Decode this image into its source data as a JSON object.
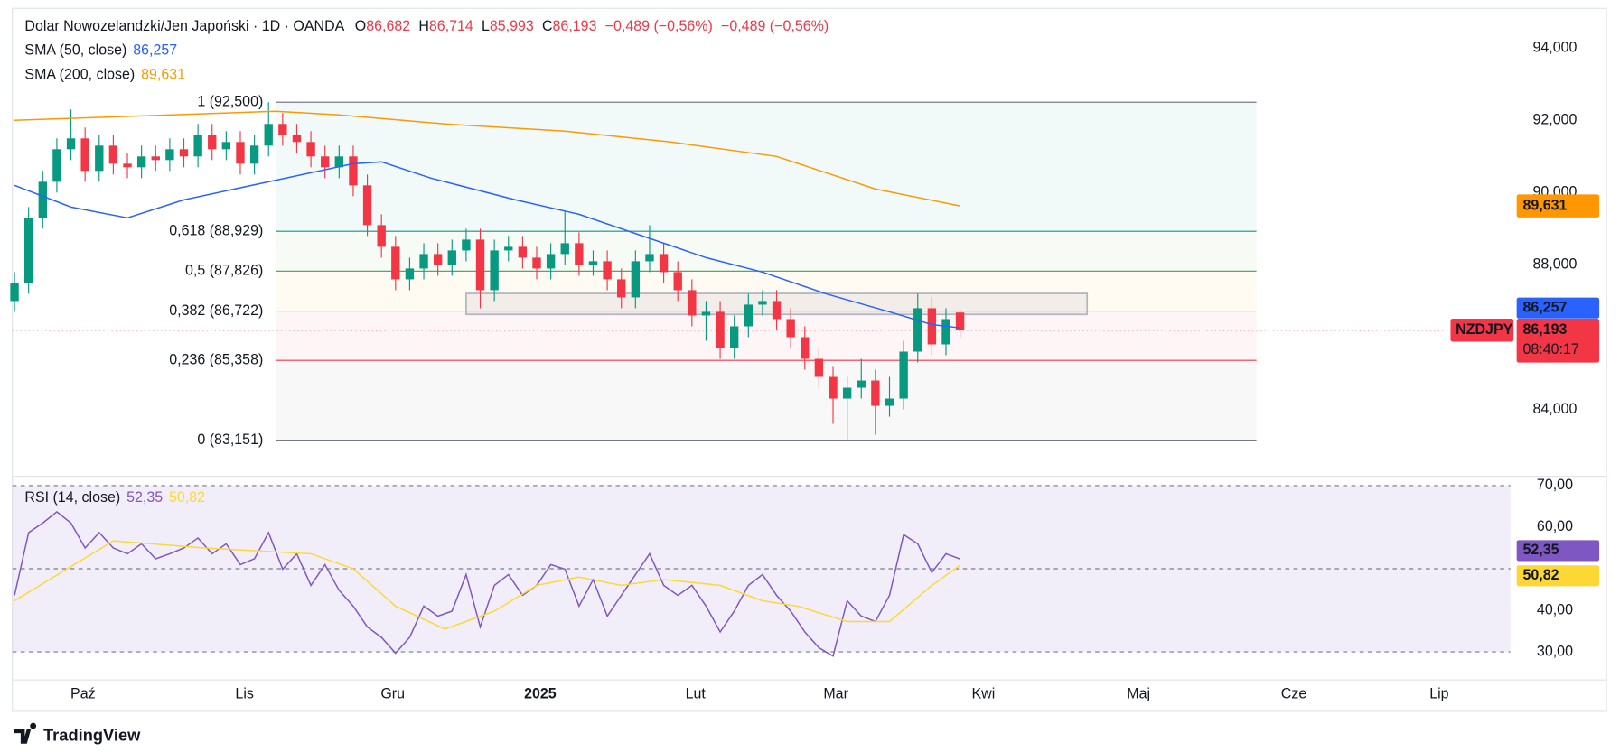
{
  "header": {
    "title": "Dolar Nowozelandzki/Jen Japoński · 1D · OANDA",
    "fields": [
      {
        "label": "O",
        "value": "86,682"
      },
      {
        "label": "H",
        "value": "86,714"
      },
      {
        "label": "L",
        "value": "85,993"
      },
      {
        "label": "C",
        "value": "86,193"
      }
    ],
    "change": [
      "−0,489 (−0,56%)",
      "−0,489 (−0,56%)"
    ],
    "value_color": "#f23645"
  },
  "footer": {
    "brand": "TradingView"
  },
  "chart_data": [
    {
      "type": "candlestick",
      "up_color": "#089981",
      "down_color": "#f23645",
      "x": [
        0,
        2,
        4,
        6,
        8,
        10,
        12,
        14,
        16,
        18,
        20,
        22,
        24,
        26,
        28,
        30,
        32,
        34,
        36,
        38,
        40,
        42,
        44,
        46,
        48,
        50,
        52,
        54,
        56,
        58,
        60,
        62,
        64,
        66,
        68,
        70,
        72,
        74,
        76,
        78,
        80,
        82,
        84,
        86,
        88,
        90,
        92,
        94,
        96,
        98,
        100,
        102,
        104,
        106,
        108,
        110,
        112,
        114,
        116,
        118,
        120,
        122,
        124,
        126,
        128,
        130,
        132,
        134
      ],
      "open": [
        87.0,
        87.5,
        89.3,
        90.3,
        91.2,
        91.5,
        90.6,
        91.3,
        90.8,
        90.7,
        91.0,
        90.9,
        91.2,
        91.0,
        91.6,
        91.2,
        91.4,
        90.8,
        91.3,
        91.9,
        91.6,
        91.4,
        91.0,
        90.7,
        91.0,
        90.2,
        89.1,
        88.5,
        87.6,
        87.9,
        88.3,
        88.0,
        88.4,
        88.7,
        87.3,
        88.4,
        88.5,
        88.2,
        87.9,
        88.3,
        88.6,
        88.0,
        88.1,
        87.6,
        87.1,
        88.1,
        88.3,
        87.8,
        87.3,
        86.6,
        86.7,
        85.7,
        86.3,
        86.9,
        87.0,
        86.5,
        86.0,
        85.4,
        84.9,
        84.3,
        84.6,
        84.8,
        84.1,
        84.3,
        85.6,
        86.8,
        85.8,
        86.682
      ],
      "high": [
        87.8,
        89.6,
        90.6,
        91.5,
        92.3,
        91.8,
        91.6,
        91.6,
        91.1,
        91.3,
        91.3,
        91.5,
        91.5,
        91.9,
        91.9,
        91.7,
        91.7,
        91.6,
        92.5,
        92.2,
        91.9,
        91.7,
        91.3,
        91.3,
        91.3,
        90.5,
        89.4,
        88.8,
        88.2,
        88.6,
        88.6,
        88.7,
        89.0,
        89.0,
        88.7,
        88.8,
        88.8,
        88.5,
        88.6,
        89.5,
        88.9,
        88.4,
        88.4,
        87.9,
        88.4,
        89.1,
        88.6,
        88.1,
        87.6,
        87.0,
        87.0,
        86.6,
        87.2,
        87.3,
        87.3,
        86.8,
        86.3,
        85.7,
        85.2,
        84.9,
        85.4,
        85.1,
        84.9,
        85.9,
        87.2,
        87.1,
        86.8,
        86.714
      ],
      "low": [
        86.7,
        87.2,
        89.0,
        90.0,
        90.9,
        90.3,
        90.3,
        90.5,
        90.4,
        90.4,
        90.6,
        90.6,
        90.7,
        90.7,
        90.9,
        90.9,
        90.5,
        90.5,
        91.0,
        91.3,
        91.1,
        90.7,
        90.4,
        90.4,
        89.9,
        88.8,
        88.2,
        87.3,
        87.3,
        87.6,
        87.7,
        87.7,
        88.1,
        86.8,
        87.0,
        88.1,
        87.9,
        87.6,
        87.6,
        88.0,
        87.7,
        87.7,
        87.3,
        86.8,
        86.8,
        87.8,
        87.5,
        87.0,
        86.3,
        85.9,
        85.4,
        85.4,
        86.0,
        86.6,
        86.2,
        85.7,
        85.1,
        84.6,
        83.6,
        83.151,
        84.3,
        83.3,
        83.8,
        84.0,
        85.3,
        85.5,
        85.5,
        85.993
      ],
      "close": [
        87.5,
        89.3,
        90.3,
        91.2,
        91.5,
        90.6,
        91.3,
        90.8,
        90.7,
        91.0,
        90.9,
        91.2,
        91.0,
        91.6,
        91.2,
        91.4,
        90.8,
        91.3,
        91.9,
        91.6,
        91.4,
        91.0,
        90.7,
        91.0,
        90.2,
        89.1,
        88.5,
        87.6,
        87.9,
        88.3,
        88.0,
        88.4,
        88.7,
        87.3,
        88.4,
        88.5,
        88.2,
        87.9,
        88.3,
        88.6,
        88.0,
        88.1,
        87.6,
        87.1,
        88.1,
        88.3,
        87.8,
        87.3,
        86.6,
        86.7,
        85.7,
        86.3,
        86.9,
        87.0,
        86.5,
        86.0,
        85.4,
        84.9,
        84.3,
        84.6,
        84.8,
        84.1,
        84.3,
        85.6,
        86.8,
        85.8,
        86.5,
        86.193
      ],
      "last_price_label": "86,193",
      "symbol": "NZDJPY",
      "countdown": "08:40:17",
      "lines": [
        {
          "name": "SMA (50, close)",
          "color": "#2962ff",
          "last_label": "86,257",
          "x": [
            0,
            8,
            16,
            24,
            36,
            48,
            52,
            59,
            71,
            80,
            89,
            98,
            106,
            115,
            124,
            130,
            134
          ],
          "values": [
            90.2,
            89.6,
            89.3,
            89.8,
            90.3,
            90.8,
            90.85,
            90.4,
            89.8,
            89.4,
            88.8,
            88.2,
            87.8,
            87.2,
            86.7,
            86.35,
            86.257
          ]
        },
        {
          "name": "SMA (200, close)",
          "color": "#ff9800",
          "last_label": "89,631",
          "x": [
            0,
            37,
            46,
            61,
            78,
            93,
            108,
            122,
            134
          ],
          "values": [
            92.0,
            92.25,
            92.15,
            91.9,
            91.7,
            91.4,
            91.0,
            90.1,
            89.631
          ]
        }
      ],
      "fib": {
        "x": [
          37,
          176
        ],
        "levels": [
          {
            "label": "1 (92,500)",
            "value": 92.5,
            "color": "#787b86"
          },
          {
            "label": "0,618 (88,929)",
            "value": 88.929,
            "color": "#089981"
          },
          {
            "label": "0,5 (87,826)",
            "value": 87.826,
            "color": "#4caf50"
          },
          {
            "label": "0,382 (86,722)",
            "value": 86.722,
            "color": "#ff9800"
          },
          {
            "label": "0,236 (85,358)",
            "value": 85.358,
            "color": "#f23645"
          },
          {
            "label": "0 (83,151)",
            "value": 83.151,
            "color": "#787b86"
          }
        ]
      },
      "rectangle": {
        "x": [
          64,
          152
        ],
        "y": [
          86.63,
          87.21
        ]
      },
      "xlim": [
        -0.3,
        212
      ],
      "ylim": [
        82.18,
        95.04
      ],
      "yticks": [
        {
          "value": 94,
          "label": "94,000"
        },
        {
          "value": 92,
          "label": "92,000"
        },
        {
          "value": 90,
          "label": "90,000"
        },
        {
          "value": 88,
          "label": "88,000"
        },
        {
          "value": 84,
          "label": "84,000"
        }
      ],
      "xticks": [
        {
          "value": 9.7,
          "label": "Paź"
        },
        {
          "value": 32.6,
          "label": "Lis"
        },
        {
          "value": 53.6,
          "label": "Gru"
        },
        {
          "value": 74.5,
          "label": "2025",
          "bold": true
        },
        {
          "value": 96.5,
          "label": "Lut"
        },
        {
          "value": 116.4,
          "label": "Mar"
        },
        {
          "value": 137.3,
          "label": "Kwi"
        },
        {
          "value": 159.3,
          "label": "Maj"
        },
        {
          "value": 181.3,
          "label": "Cze"
        },
        {
          "value": 201.9,
          "label": "Lip"
        }
      ]
    },
    {
      "type": "line",
      "title": "RSI (14, close)",
      "x": [
        0,
        2,
        4,
        6,
        8,
        10,
        12,
        14,
        16,
        18,
        20,
        22,
        24,
        26,
        28,
        30,
        32,
        34,
        36,
        38,
        40,
        42,
        44,
        46,
        48,
        50,
        52,
        54,
        56,
        58,
        60,
        62,
        64,
        66,
        68,
        70,
        72,
        74,
        76,
        78,
        80,
        82,
        84,
        86,
        88,
        90,
        92,
        94,
        96,
        98,
        100,
        102,
        104,
        106,
        108,
        110,
        112,
        114,
        116,
        118,
        120,
        122,
        124,
        126,
        128,
        130,
        132,
        134
      ],
      "series": [
        {
          "color": "#7e57c2",
          "last_label": "52,35",
          "values": [
            43.6,
            58.7,
            61,
            63.7,
            61,
            55,
            58.7,
            55,
            53.6,
            56,
            52.4,
            53.6,
            55,
            57.4,
            53.6,
            56,
            51,
            52.4,
            58.7,
            49.9,
            53.6,
            46,
            51,
            44.8,
            41,
            36,
            33.5,
            29.7,
            33.5,
            41,
            38.6,
            39.8,
            48.6,
            36,
            46,
            48.6,
            43.6,
            46,
            51,
            49.9,
            41,
            47.4,
            38.6,
            43.6,
            48.6,
            53.6,
            46,
            43.6,
            46,
            41,
            34.8,
            39.8,
            46,
            48.6,
            43.6,
            39.8,
            34.8,
            31,
            29,
            42.3,
            38.6,
            37.3,
            43.6,
            58.2,
            56,
            49.1,
            53.6,
            52.35
          ]
        },
        {
          "color": "#fdd835",
          "last_label": "50,82",
          "x": [
            0,
            14,
            27,
            42,
            48,
            54,
            61,
            68,
            74,
            80,
            86,
            92,
            100,
            106,
            111,
            118,
            124,
            130,
            134
          ],
          "values": [
            42.3,
            56.7,
            55,
            53.6,
            50,
            41,
            35.5,
            39.8,
            46,
            48,
            46,
            47.4,
            46,
            42.3,
            41,
            37.3,
            37.3,
            46,
            50.82
          ]
        }
      ],
      "levels": [
        70,
        50,
        30
      ],
      "ylim": [
        23.5,
        72
      ],
      "yticks": [
        {
          "value": 70,
          "label": "70,00"
        },
        {
          "value": 60,
          "label": "60,00"
        },
        {
          "value": 40,
          "label": "40,00"
        },
        {
          "value": 30,
          "label": "30,00"
        }
      ]
    }
  ]
}
